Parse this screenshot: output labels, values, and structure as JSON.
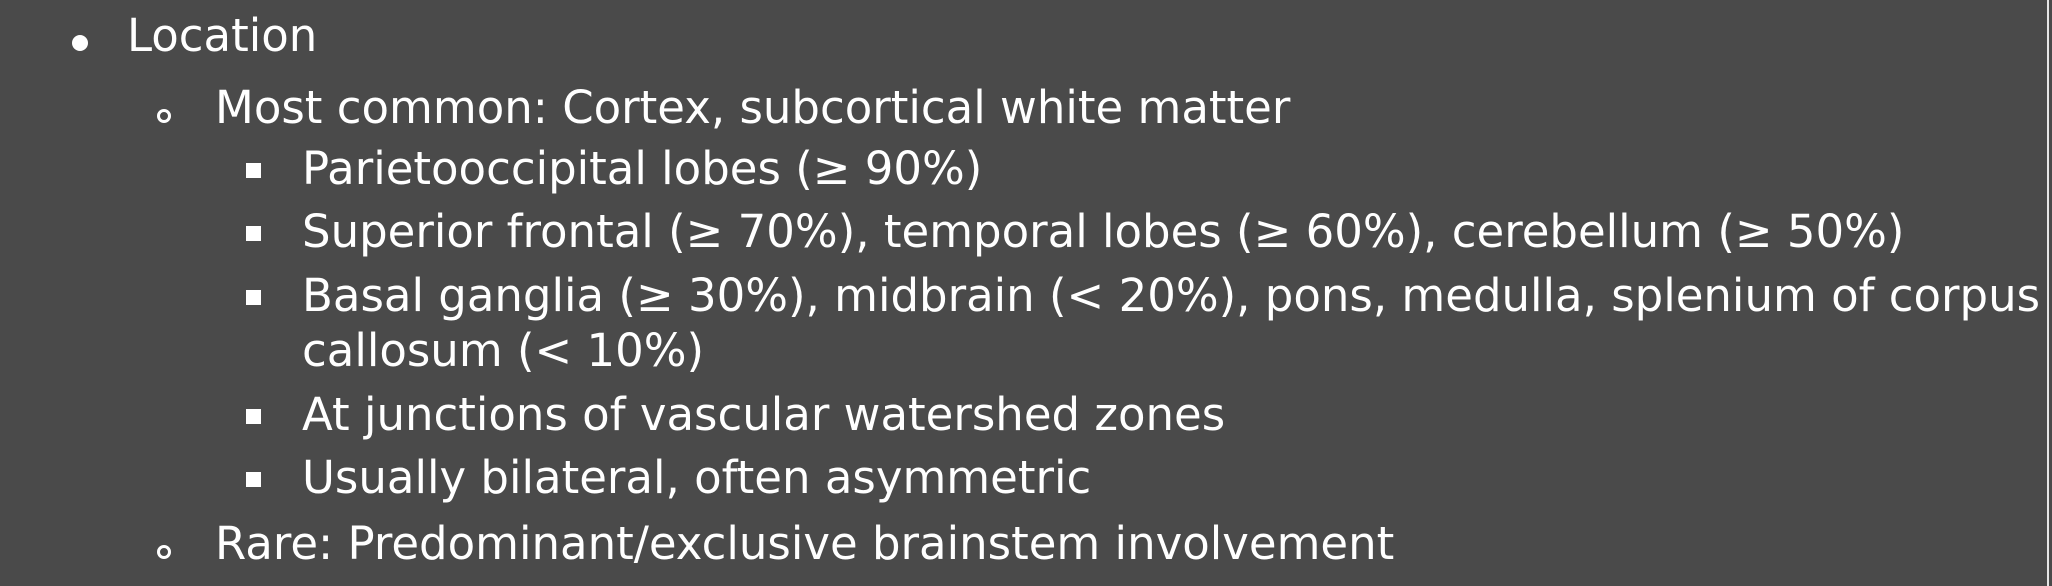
{
  "outline": {
    "level1": {
      "text": "Location"
    },
    "level2_first": {
      "text": "Most common: Cortex, subcortical white matter"
    },
    "level3_items": [
      "Parietooccipital lobes (≥ 90%)",
      "Superior frontal (≥ 70%), temporal lobes (≥ 60%), cerebellum (≥ 50%)",
      "Basal ganglia (≥ 30%), midbrain (< 20%), pons, medulla, splenium of corpus",
      "callosum (< 10%)",
      "At junctions of vascular watershed zones",
      "Usually bilateral, often asymmetric"
    ],
    "level2_last": {
      "text": "Rare: Predominant/exclusive brainstem involvement"
    }
  },
  "colors": {
    "background": "#4a4a4a",
    "text": "#ffffff",
    "border": "#e6e6e6"
  },
  "icons": {
    "level1_bullet": "filled-disc",
    "level2_bullet": "hollow-circle",
    "level3_bullet": "filled-square"
  }
}
